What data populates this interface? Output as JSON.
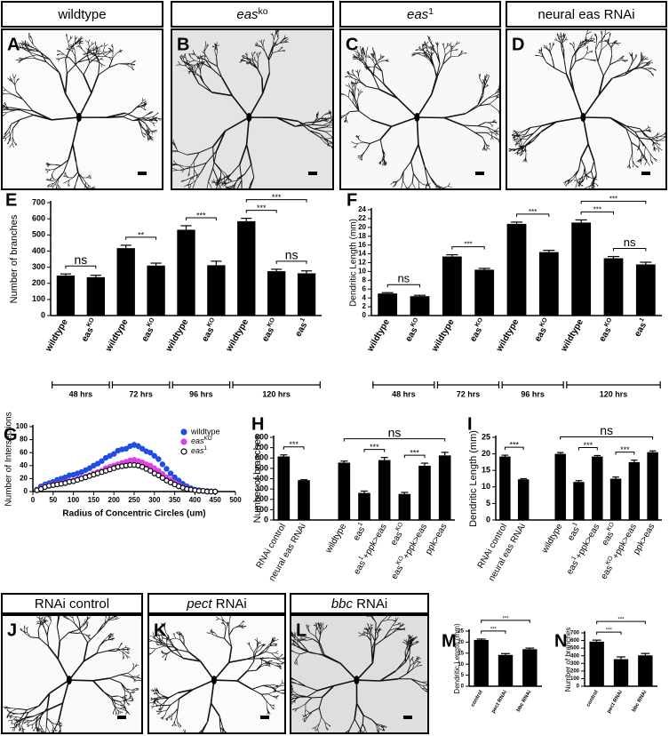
{
  "image_panels": [
    {
      "label": "A",
      "header": "wildtype"
    },
    {
      "label": "B",
      "header": {
        "base": "eas",
        "sup": "ko"
      },
      "italic": true
    },
    {
      "label": "C",
      "header": {
        "base": "eas",
        "sup": "1"
      },
      "italic": true
    },
    {
      "label": "D",
      "header": "neural eas RNAi"
    },
    {
      "label": "J",
      "header": "RNAi control"
    },
    {
      "label": "K",
      "header": {
        "base": "pect",
        "after": " RNAi"
      },
      "italic": true
    },
    {
      "label": "L",
      "header": {
        "base": "bbc",
        "after": " RNAi"
      },
      "italic": true
    }
  ],
  "chart_data": [
    {
      "type": "bar",
      "label": "E",
      "ylabel": "Number of branches",
      "color": "#000000",
      "categories": [
        "wildtype",
        {
          "base": "eas",
          "sup": "KO"
        },
        "wildtype",
        {
          "base": "eas",
          "sup": "KO"
        },
        "wildtype",
        {
          "base": "eas",
          "sup": "KO"
        },
        "wildtype",
        {
          "base": "eas",
          "sup": "KO"
        },
        {
          "base": "eas",
          "sup": "1"
        }
      ],
      "values": [
        248,
        238,
        418,
        310,
        532,
        312,
        585,
        275,
        262
      ],
      "errors": [
        10,
        12,
        18,
        15,
        25,
        25,
        18,
        12,
        15
      ],
      "ylim": [
        0,
        700
      ],
      "yticks": [
        0,
        100,
        200,
        300,
        400,
        500,
        600,
        700
      ],
      "annotations": [
        {
          "text": "ns",
          "from": 0,
          "to": 1
        },
        {
          "text": "**",
          "from": 2,
          "to": 3
        },
        {
          "text": "***",
          "from": 4,
          "to": 5
        },
        {
          "text": "ns",
          "from": 7,
          "to": 8
        },
        {
          "text": "***",
          "from": 6,
          "to": 7
        },
        {
          "text": "***",
          "from": 6,
          "to": 8
        }
      ],
      "groups": [
        {
          "label": "48 hrs",
          "from": 0,
          "to": 1
        },
        {
          "label": "72 hrs",
          "from": 2,
          "to": 3
        },
        {
          "label": "96 hrs",
          "from": 4,
          "to": 5
        },
        {
          "label": "120 hrs",
          "from": 6,
          "to": 8
        }
      ]
    },
    {
      "type": "bar",
      "label": "F",
      "ylabel": "Dendritic Length (mm)",
      "color": "#000000",
      "categories": [
        "wildtype",
        {
          "base": "eas",
          "sup": "KO"
        },
        "wildtype",
        {
          "base": "eas",
          "sup": "KO"
        },
        "wildtype",
        {
          "base": "eas",
          "sup": "KO"
        },
        "wildtype",
        {
          "base": "eas",
          "sup": "KO"
        },
        {
          "base": "eas",
          "sup": "1"
        }
      ],
      "values": [
        5.0,
        4.4,
        13.4,
        10.4,
        20.8,
        14.4,
        21.1,
        13.0,
        11.6
      ],
      "errors": [
        0.2,
        0.2,
        0.4,
        0.3,
        0.4,
        0.4,
        0.6,
        0.4,
        0.5
      ],
      "ylim": [
        0,
        24
      ],
      "yticks": [
        0,
        2,
        4,
        6,
        8,
        10,
        12,
        14,
        16,
        18,
        20,
        22,
        24
      ],
      "annotations": [
        {
          "text": "ns",
          "from": 0,
          "to": 1
        },
        {
          "text": "***",
          "from": 2,
          "to": 3
        },
        {
          "text": "***",
          "from": 4,
          "to": 5
        },
        {
          "text": "ns",
          "from": 7,
          "to": 8
        },
        {
          "text": "***",
          "from": 6,
          "to": 7
        },
        {
          "text": "***",
          "from": 6,
          "to": 8
        }
      ],
      "groups": [
        {
          "label": "48 hrs",
          "from": 0,
          "to": 1
        },
        {
          "label": "72 hrs",
          "from": 2,
          "to": 3
        },
        {
          "label": "96 hrs",
          "from": 4,
          "to": 5
        },
        {
          "label": "120 hrs",
          "from": 6,
          "to": 8
        }
      ]
    },
    {
      "type": "scatter",
      "label": "G",
      "xlabel": "Radius of Concentric Circles (um)",
      "ylabel": "Number of Intersections",
      "x": [
        10,
        20,
        30,
        40,
        50,
        60,
        70,
        80,
        90,
        100,
        110,
        120,
        130,
        140,
        150,
        160,
        170,
        180,
        190,
        200,
        210,
        220,
        230,
        240,
        250,
        260,
        270,
        280,
        290,
        300,
        310,
        320,
        330,
        340,
        350,
        360,
        370,
        380,
        390,
        400,
        410,
        420,
        430,
        440,
        450
      ],
      "series": [
        {
          "name": "wildtype",
          "color": "#1e4ee6",
          "marker": "filled",
          "values": [
            3,
            8,
            11,
            13,
            15,
            18,
            20,
            22,
            25,
            26,
            28,
            30,
            33,
            36,
            40,
            43,
            47,
            52,
            55,
            58,
            63,
            65,
            66,
            70,
            72,
            70,
            66,
            62,
            60,
            55,
            50,
            42,
            35,
            28,
            22,
            17,
            12,
            8,
            5,
            3,
            2,
            1,
            1,
            0,
            0
          ],
          "errors": [
            1,
            1,
            1,
            1,
            1,
            1,
            1,
            1,
            1,
            2,
            2,
            2,
            2,
            2,
            2,
            3,
            3,
            3,
            3,
            3,
            4,
            4,
            4,
            4,
            5,
            5,
            4,
            4,
            4,
            4,
            3,
            3,
            3,
            3,
            2,
            2,
            2,
            2,
            1,
            1,
            1,
            1,
            1,
            1,
            1
          ]
        },
        {
          "name": {
            "base": "eas",
            "sup": "KO"
          },
          "color": "#e23fe6",
          "marker": "filled",
          "values": [
            2,
            5,
            8,
            10,
            11,
            12,
            13,
            14,
            16,
            17,
            19,
            21,
            23,
            25,
            28,
            30,
            32,
            36,
            38,
            40,
            42,
            44,
            46,
            48,
            49,
            47,
            45,
            42,
            40,
            36,
            32,
            27,
            22,
            18,
            14,
            10,
            7,
            5,
            3,
            2,
            1,
            1,
            0,
            0,
            0
          ],
          "errors": [
            1,
            1,
            1,
            1,
            1,
            1,
            1,
            1,
            1,
            1,
            1,
            2,
            2,
            2,
            2,
            2,
            2,
            3,
            3,
            3,
            3,
            3,
            3,
            4,
            4,
            4,
            3,
            3,
            3,
            3,
            3,
            2,
            2,
            2,
            2,
            2,
            1,
            1,
            1,
            1,
            1,
            1,
            1,
            1,
            1
          ]
        },
        {
          "name": {
            "base": "eas",
            "sup": "1"
          },
          "color": "#000000",
          "marker": "open",
          "values": [
            2,
            4,
            7,
            9,
            10,
            11,
            12,
            13,
            15,
            16,
            18,
            20,
            22,
            24,
            26,
            28,
            30,
            32,
            34,
            36,
            38,
            39,
            40,
            41,
            41,
            40,
            38,
            35,
            32,
            28,
            25,
            21,
            17,
            14,
            11,
            8,
            6,
            4,
            3,
            2,
            1,
            1,
            0,
            0,
            0
          ],
          "errors": [
            1,
            1,
            1,
            1,
            1,
            1,
            1,
            1,
            1,
            1,
            1,
            2,
            2,
            2,
            2,
            2,
            2,
            3,
            3,
            3,
            3,
            3,
            3,
            4,
            4,
            4,
            3,
            3,
            3,
            3,
            3,
            2,
            2,
            2,
            2,
            2,
            1,
            1,
            1,
            1,
            1,
            1,
            1,
            1,
            1
          ]
        }
      ],
      "xlim": [
        0,
        500
      ],
      "xticks": [
        0,
        50,
        100,
        150,
        200,
        250,
        300,
        350,
        400,
        450,
        500
      ],
      "ylim": [
        0,
        100
      ],
      "yticks": [
        0,
        20,
        40,
        60,
        80,
        100
      ],
      "legend": "upper right"
    },
    {
      "type": "bar",
      "label": "H",
      "ylabel": "Number of branches",
      "color": "#000000",
      "categories": [
        "RNAi control",
        "neural eas RNAi",
        null,
        "wildtype",
        {
          "base": "eas",
          "sup": "1"
        },
        {
          "base": "eas",
          "sup": "1",
          "after": "+ppk>eas"
        },
        {
          "base": "eas",
          "sup": "KO"
        },
        {
          "base": "eas",
          "sup": "KO",
          "after": "+ppk>eas"
        },
        "ppk>eas"
      ],
      "values": [
        615,
        385,
        null,
        555,
        262,
        580,
        252,
        525,
        625
      ],
      "errors": [
        15,
        5,
        null,
        15,
        18,
        25,
        15,
        25,
        30
      ],
      "ylim": [
        0,
        800
      ],
      "yticks": [
        0,
        100,
        200,
        300,
        400,
        500,
        600,
        700,
        800
      ],
      "annotations": [
        {
          "text": "***",
          "from": 0,
          "to": 1
        },
        {
          "text": "***",
          "from": 4,
          "to": 5
        },
        {
          "text": "***",
          "from": 6,
          "to": 7
        },
        {
          "text": "ns",
          "from": 3,
          "to": 8
        }
      ]
    },
    {
      "type": "bar",
      "label": "I",
      "ylabel": "Dendritic Length (mm)",
      "color": "#000000",
      "categories": [
        "RNAi control",
        "neural eas RNAi",
        null,
        "wildtype",
        {
          "base": "eas",
          "sup": "1"
        },
        {
          "base": "eas",
          "sup": "1",
          "after": "+ppk>eas"
        },
        {
          "base": "eas",
          "sup": "KO"
        },
        {
          "base": "eas",
          "sup": "KO",
          "after": "+ppk>eas"
        },
        "ppk>eas"
      ],
      "values": [
        19.2,
        12.3,
        null,
        20.0,
        11.5,
        19.2,
        12.5,
        17.5,
        20.5
      ],
      "errors": [
        0.4,
        0.2,
        null,
        0.4,
        0.4,
        0.3,
        0.5,
        0.6,
        0.4
      ],
      "ylim": [
        0,
        25
      ],
      "yticks": [
        0,
        5,
        10,
        15,
        20,
        25
      ],
      "annotations": [
        {
          "text": "***",
          "from": 0,
          "to": 1
        },
        {
          "text": "***",
          "from": 4,
          "to": 5
        },
        {
          "text": "***",
          "from": 6,
          "to": 7
        },
        {
          "text": "ns",
          "from": 3,
          "to": 8
        }
      ]
    },
    {
      "type": "bar",
      "label": "M",
      "ylabel": "Dendritic Length (mm)",
      "color": "#000000",
      "categories": [
        "control",
        "pect RNAi",
        "bbc RNAi"
      ],
      "values": [
        21.0,
        14.2,
        16.8
      ],
      "errors": [
        0.4,
        0.6,
        0.5
      ],
      "ylim": [
        0,
        25
      ],
      "yticks": [
        0,
        5,
        10,
        15,
        20,
        25
      ],
      "annotations": [
        {
          "text": "***",
          "from": 0,
          "to": 1
        },
        {
          "text": "***",
          "from": 0,
          "to": 2
        }
      ]
    },
    {
      "type": "bar",
      "label": "N",
      "ylabel": "Number of branches",
      "color": "#000000",
      "categories": [
        "control",
        "pect RNAi",
        "bbc RNAi"
      ],
      "values": [
        585,
        355,
        405
      ],
      "errors": [
        20,
        30,
        25
      ],
      "ylim": [
        0,
        700
      ],
      "yticks": [
        0,
        100,
        200,
        300,
        400,
        500,
        600,
        700
      ],
      "annotations": [
        {
          "text": "***",
          "from": 0,
          "to": 1
        },
        {
          "text": "***",
          "from": 0,
          "to": 2
        }
      ]
    }
  ]
}
